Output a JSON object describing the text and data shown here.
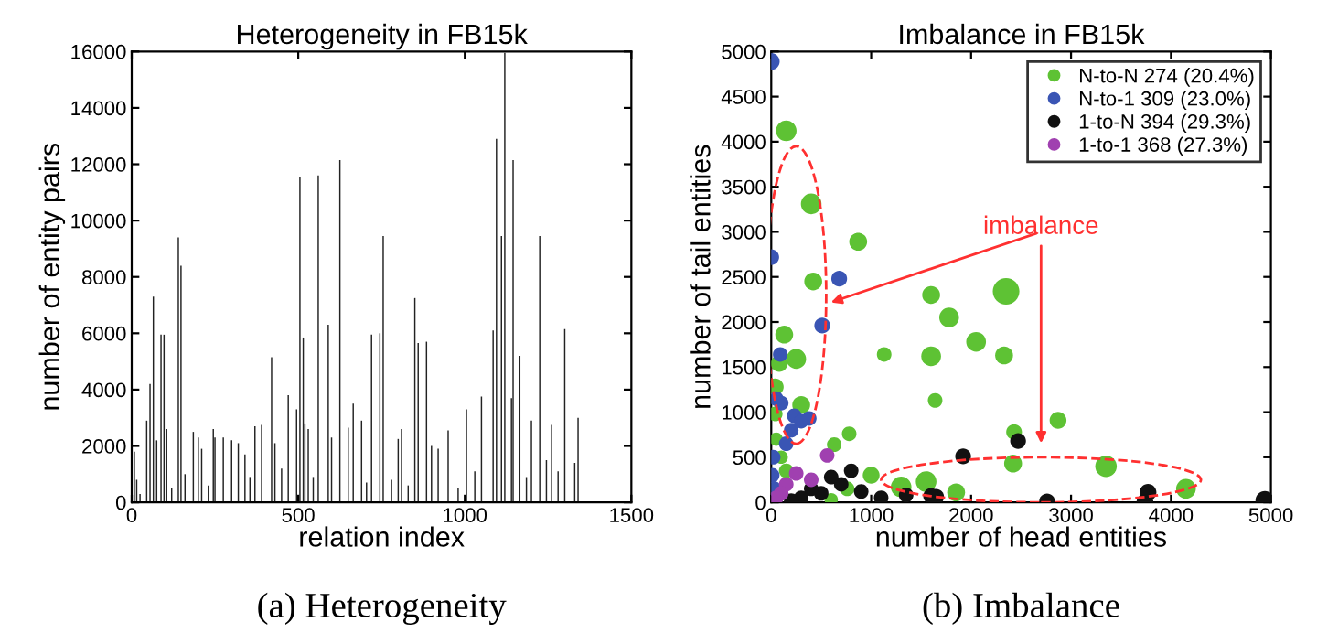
{
  "chart_data": [
    {
      "type": "bar",
      "title": "Heterogeneity in FB15k",
      "xlabel": "relation index",
      "ylabel": "number of entity pairs",
      "x": [
        8,
        15,
        25,
        45,
        55,
        65,
        75,
        88,
        97,
        105,
        120,
        140,
        148,
        160,
        185,
        200,
        210,
        230,
        245,
        250,
        275,
        300,
        320,
        340,
        355,
        370,
        390,
        420,
        430,
        450,
        470,
        495,
        505,
        515,
        520,
        530,
        545,
        560,
        590,
        600,
        625,
        650,
        665,
        690,
        705,
        720,
        745,
        755,
        780,
        800,
        810,
        830,
        850,
        860,
        885,
        900,
        920,
        950,
        980,
        1005,
        1030,
        1050,
        1085,
        1095,
        1110,
        1120,
        1140,
        1145,
        1165,
        1185,
        1200,
        1225,
        1245,
        1260,
        1280,
        1300,
        1330,
        1340
      ],
      "values": [
        1800,
        800,
        300,
        2900,
        4200,
        7300,
        2200,
        5950,
        5950,
        2600,
        500,
        9400,
        8400,
        1000,
        2500,
        2300,
        1900,
        600,
        2600,
        2300,
        2300,
        2200,
        2100,
        1700,
        900,
        2700,
        2750,
        5150,
        2100,
        1200,
        3800,
        3300,
        11550,
        5850,
        2800,
        2600,
        900,
        11600,
        6300,
        2300,
        12150,
        2650,
        3500,
        2900,
        700,
        5950,
        6000,
        9450,
        800,
        2250,
        2600,
        600,
        7250,
        5650,
        5700,
        2000,
        1900,
        2550,
        500,
        3300,
        1100,
        3750,
        6100,
        12900,
        9450,
        15950,
        3700,
        12150,
        5200,
        900,
        2900,
        9450,
        1500,
        2750,
        1100,
        6150,
        1400,
        3000
      ],
      "color": "#222222",
      "xlim": [
        0,
        1500
      ],
      "xticks": [
        0,
        500,
        1000,
        1500
      ],
      "ylim": [
        0,
        16000
      ],
      "yticks": [
        0,
        2000,
        4000,
        6000,
        8000,
        10000,
        12000,
        14000,
        16000
      ],
      "grid": false,
      "annotations": [
        "(a) Heterogeneity"
      ]
    },
    {
      "type": "bubble",
      "title": "Imbalance in FB15k",
      "xlabel": "number of head entities",
      "ylabel": "number of tail entities",
      "series": [
        {
          "name": "N-to-N 274 (20.4%)",
          "color": "#5ec234",
          "x": [
            150,
            400,
            870,
            420,
            2350,
            1600,
            1780,
            2050,
            1600,
            2330,
            1130,
            130,
            250,
            80,
            40,
            1640,
            300,
            40,
            2870,
            2430,
            780,
            630,
            2420,
            3350,
            4150,
            1550,
            1300,
            1850,
            1000,
            760,
            150,
            50,
            100,
            600
          ],
          "values": [
            4120,
            3310,
            2890,
            2450,
            2340,
            2300,
            2050,
            1780,
            1620,
            1630,
            1640,
            1860,
            1590,
            1540,
            1280,
            1130,
            1080,
            980,
            910,
            780,
            760,
            640,
            430,
            400,
            150,
            230,
            170,
            110,
            300,
            150,
            350,
            700,
            500,
            30
          ],
          "sizes": [
            0.6,
            0.6,
            0.45,
            0.45,
            1,
            0.45,
            0.55,
            0.55,
            0.55,
            0.45,
            0.3,
            0.45,
            0.55,
            0.4,
            0.4,
            0.3,
            0.45,
            0.3,
            0.4,
            0.35,
            0.3,
            0.3,
            0.45,
            0.65,
            0.55,
            0.6,
            0.6,
            0.45,
            0.4,
            0.3,
            0.3,
            0.25,
            0.25,
            0.25
          ]
        },
        {
          "name": "N-to-1 309 (23.0%)",
          "color": "#3a55b4",
          "x": [
            0,
            0,
            680,
            510,
            90,
            230,
            300,
            380,
            100,
            50,
            20,
            10,
            30,
            200,
            150
          ],
          "values": [
            4890,
            2720,
            2480,
            1960,
            1640,
            960,
            900,
            930,
            1100,
            1150,
            500,
            300,
            150,
            800,
            650
          ],
          "sizes": [
            0.4,
            0.35,
            0.35,
            0.35,
            0.3,
            0.3,
            0.3,
            0.3,
            0.3,
            0.3,
            0.3,
            0.3,
            0.3,
            0.3,
            0.3
          ]
        },
        {
          "name": "1-to-N 394 (29.3%)",
          "color": "#111111",
          "x": [
            4940,
            3770,
            3740,
            2760,
            2470,
            1920,
            1650,
            1600,
            1350,
            900,
            700,
            600,
            800,
            500,
            400,
            300,
            200,
            1100
          ],
          "values": [
            20,
            110,
            0,
            10,
            680,
            510,
            60,
            70,
            80,
            120,
            200,
            280,
            350,
            100,
            150,
            50,
            20,
            50
          ],
          "sizes": [
            0.5,
            0.4,
            0.4,
            0.35,
            0.35,
            0.35,
            0.35,
            0.35,
            0.3,
            0.3,
            0.3,
            0.3,
            0.3,
            0.3,
            0.3,
            0.3,
            0.3,
            0.3
          ]
        },
        {
          "name": "1-to-1 368 (27.3%)",
          "color": "#a040b0",
          "x": [
            560,
            250,
            150,
            100,
            50,
            400
          ],
          "values": [
            520,
            320,
            200,
            100,
            50,
            250
          ],
          "sizes": [
            0.3,
            0.3,
            0.3,
            0.3,
            0.3,
            0.3
          ]
        }
      ],
      "xlim": [
        0,
        5000
      ],
      "xticks": [
        0,
        1000,
        2000,
        3000,
        4000,
        5000
      ],
      "ylim": [
        0,
        5000
      ],
      "yticks": [
        0,
        500,
        1000,
        1500,
        2000,
        2500,
        3000,
        3500,
        4000,
        4500,
        5000
      ],
      "grid": false,
      "legend": "top right",
      "marker": "circle",
      "annotations": [
        "imbalance",
        "(b) Imbalance"
      ]
    }
  ]
}
